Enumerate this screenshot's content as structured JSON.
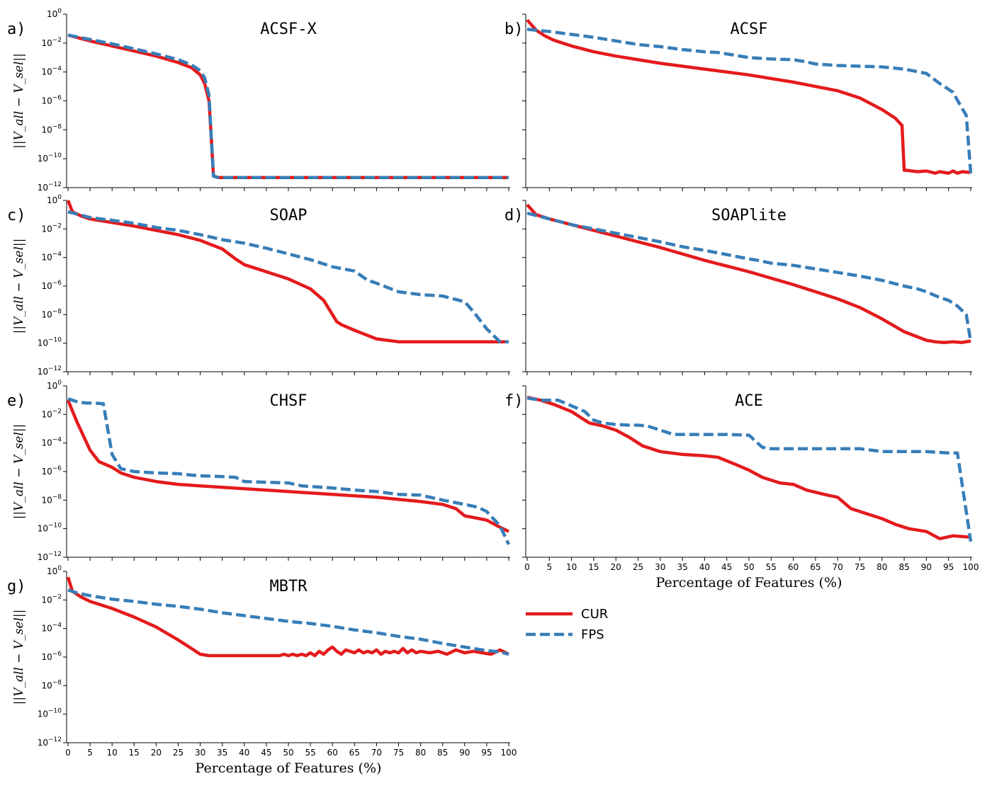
{
  "chart_data": [
    {
      "type": "line",
      "panel": "a)",
      "title": "ACSF-X",
      "xlabel": "",
      "ylabel": "||V_all − V_sel||",
      "xlim": [
        0,
        100
      ],
      "ylim_log10": [
        -12,
        0
      ],
      "xticks": [],
      "ytick_labels": [
        "10⁰",
        "10⁻²",
        "10⁻⁴",
        "10⁻⁶",
        "10⁻⁸",
        "10⁻¹⁰",
        "10⁻¹²"
      ],
      "series": [
        {
          "name": "CUR",
          "x": [
            0,
            5,
            10,
            15,
            20,
            25,
            28,
            30,
            31,
            32,
            32.5,
            33,
            34,
            40,
            50,
            60,
            70,
            80,
            90,
            100
          ],
          "y": [
            -1.45,
            -1.85,
            -2.2,
            -2.55,
            -2.9,
            -3.35,
            -3.7,
            -4.2,
            -4.8,
            -6.0,
            -8.5,
            -11.2,
            -11.3,
            -11.3,
            -11.3,
            -11.3,
            -11.3,
            -11.3,
            -11.3,
            -11.3
          ]
        },
        {
          "name": "FPS",
          "x": [
            0,
            5,
            10,
            15,
            20,
            25,
            28,
            30,
            31,
            32,
            32.5,
            33,
            34,
            40,
            50,
            60,
            70,
            80,
            90,
            100
          ],
          "y": [
            -1.45,
            -1.75,
            -2.05,
            -2.4,
            -2.75,
            -3.15,
            -3.5,
            -3.9,
            -4.4,
            -5.6,
            -8.5,
            -11.2,
            -11.3,
            -11.3,
            -11.3,
            -11.3,
            -11.3,
            -11.3,
            -11.3,
            -11.3
          ]
        }
      ]
    },
    {
      "type": "line",
      "panel": "b)",
      "title": "ACSF",
      "xlabel": "",
      "ylabel": "",
      "xlim": [
        0,
        100
      ],
      "ylim_log10": [
        -12,
        0
      ],
      "xticks": [],
      "ytick_labels": [],
      "series": [
        {
          "name": "CUR",
          "x": [
            0,
            2,
            4,
            6,
            10,
            15,
            20,
            30,
            40,
            50,
            60,
            70,
            75,
            80,
            83,
            84.5,
            85,
            85.5,
            88,
            90,
            92,
            93,
            95,
            96,
            97,
            98,
            100
          ],
          "y": [
            -0.4,
            -1.1,
            -1.5,
            -1.8,
            -2.2,
            -2.6,
            -2.9,
            -3.4,
            -3.8,
            -4.2,
            -4.7,
            -5.3,
            -5.8,
            -6.6,
            -7.2,
            -7.7,
            -10.8,
            -10.8,
            -10.9,
            -10.85,
            -11.0,
            -10.9,
            -11.0,
            -10.85,
            -11.0,
            -10.9,
            -10.95
          ]
        },
        {
          "name": "FPS",
          "x": [
            0,
            5,
            10,
            15,
            20,
            25,
            30,
            35,
            40,
            43,
            47,
            50,
            55,
            60,
            63,
            65,
            70,
            75,
            80,
            85,
            90,
            93,
            96,
            98,
            99,
            100
          ],
          "y": [
            -1.05,
            -1.2,
            -1.4,
            -1.6,
            -1.85,
            -2.1,
            -2.25,
            -2.45,
            -2.6,
            -2.65,
            -2.85,
            -3.0,
            -3.1,
            -3.15,
            -3.3,
            -3.45,
            -3.55,
            -3.6,
            -3.65,
            -3.8,
            -4.1,
            -4.8,
            -5.4,
            -6.5,
            -7.0,
            -11.0
          ]
        }
      ]
    },
    {
      "type": "line",
      "panel": "c)",
      "title": "SOAP",
      "xlabel": "",
      "ylabel": "||V_all − V_sel||",
      "xlim": [
        0,
        100
      ],
      "ylim_log10": [
        -12,
        0
      ],
      "xticks": [],
      "ytick_labels": [
        "10⁰",
        "10⁻²",
        "10⁻⁴",
        "10⁻⁶",
        "10⁻⁸",
        "10⁻¹⁰",
        "10⁻¹²"
      ],
      "series": [
        {
          "name": "CUR",
          "x": [
            0,
            1,
            3,
            5,
            10,
            15,
            20,
            25,
            30,
            35,
            38,
            40,
            43,
            45,
            50,
            55,
            58,
            60,
            61,
            62,
            65,
            70,
            75,
            80,
            85,
            90,
            95,
            100
          ],
          "y": [
            0.0,
            -0.8,
            -1.1,
            -1.3,
            -1.55,
            -1.8,
            -2.1,
            -2.4,
            -2.8,
            -3.4,
            -4.1,
            -4.5,
            -4.8,
            -5.0,
            -5.5,
            -6.2,
            -7.0,
            -8.0,
            -8.5,
            -8.7,
            -9.1,
            -9.7,
            -9.9,
            -9.9,
            -9.9,
            -9.9,
            -9.9,
            -9.9
          ]
        },
        {
          "name": "FPS",
          "x": [
            0,
            5,
            10,
            15,
            20,
            25,
            30,
            35,
            40,
            45,
            50,
            55,
            60,
            65,
            68,
            70,
            75,
            80,
            85,
            90,
            92,
            95,
            98,
            100
          ],
          "y": [
            -0.8,
            -1.2,
            -1.4,
            -1.6,
            -1.9,
            -2.1,
            -2.4,
            -2.75,
            -3.0,
            -3.35,
            -3.75,
            -4.15,
            -4.65,
            -4.95,
            -5.6,
            -5.8,
            -6.4,
            -6.6,
            -6.7,
            -7.1,
            -7.8,
            -9.0,
            -9.9,
            -9.9
          ]
        }
      ]
    },
    {
      "type": "line",
      "panel": "d)",
      "title": "SOAPlite",
      "xlabel": "",
      "ylabel": "",
      "xlim": [
        0,
        100
      ],
      "ylim_log10": [
        -12,
        0
      ],
      "xticks": [],
      "ytick_labels": [],
      "series": [
        {
          "name": "CUR",
          "x": [
            0,
            2,
            5,
            10,
            20,
            30,
            40,
            50,
            60,
            70,
            75,
            80,
            85,
            90,
            92,
            94,
            96,
            98,
            100
          ],
          "y": [
            -0.3,
            -1.0,
            -1.3,
            -1.7,
            -2.5,
            -3.3,
            -4.2,
            -5.0,
            -5.9,
            -6.9,
            -7.5,
            -8.3,
            -9.2,
            -9.8,
            -9.9,
            -9.95,
            -9.9,
            -9.95,
            -9.85
          ]
        },
        {
          "name": "FPS",
          "x": [
            0,
            5,
            10,
            15,
            20,
            25,
            30,
            35,
            40,
            45,
            50,
            52,
            55,
            60,
            65,
            70,
            75,
            80,
            85,
            88,
            90,
            93,
            95,
            97,
            99,
            100
          ],
          "y": [
            -0.9,
            -1.3,
            -1.7,
            -2.0,
            -2.3,
            -2.6,
            -2.9,
            -3.25,
            -3.5,
            -3.8,
            -4.1,
            -4.2,
            -4.4,
            -4.55,
            -4.8,
            -5.05,
            -5.3,
            -5.6,
            -6.0,
            -6.2,
            -6.4,
            -6.8,
            -7.0,
            -7.4,
            -8.0,
            -9.9
          ]
        }
      ]
    },
    {
      "type": "line",
      "panel": "e)",
      "title": "CHSF",
      "xlabel": "",
      "ylabel": "||V_all − V_sel||",
      "xlim": [
        0,
        100
      ],
      "ylim_log10": [
        -12,
        0
      ],
      "xticks": [],
      "ytick_labels": [
        "10⁰",
        "10⁻²",
        "10⁻⁴",
        "10⁻⁶",
        "10⁻⁸",
        "10⁻¹⁰",
        "10⁻¹²"
      ],
      "series": [
        {
          "name": "CUR",
          "x": [
            0,
            2,
            5,
            7,
            10,
            12,
            15,
            20,
            25,
            30,
            40,
            50,
            60,
            70,
            80,
            85,
            88,
            90,
            95,
            98,
            100
          ],
          "y": [
            -1.0,
            -2.5,
            -4.5,
            -5.3,
            -5.7,
            -6.1,
            -6.4,
            -6.7,
            -6.9,
            -7.0,
            -7.2,
            -7.4,
            -7.6,
            -7.8,
            -8.1,
            -8.3,
            -8.6,
            -9.1,
            -9.4,
            -9.9,
            -10.2
          ]
        },
        {
          "name": "FPS",
          "x": [
            0,
            2,
            4,
            6,
            8,
            10,
            12,
            15,
            20,
            25,
            28,
            30,
            35,
            38,
            40,
            45,
            50,
            53,
            60,
            65,
            70,
            75,
            80,
            85,
            90,
            93,
            95,
            98,
            100
          ],
          "y": [
            -0.9,
            -1.1,
            -1.2,
            -1.2,
            -1.25,
            -4.8,
            -5.8,
            -6.0,
            -6.1,
            -6.15,
            -6.25,
            -6.3,
            -6.35,
            -6.4,
            -6.7,
            -6.75,
            -6.8,
            -7.0,
            -7.15,
            -7.3,
            -7.4,
            -7.6,
            -7.65,
            -8.0,
            -8.3,
            -8.5,
            -8.8,
            -9.8,
            -11.1
          ]
        }
      ]
    },
    {
      "type": "line",
      "panel": "f)",
      "title": "ACE",
      "xlabel": "Percentage of Features (%)",
      "ylabel": "",
      "xlim": [
        0,
        100
      ],
      "ylim_log10": [
        -12,
        0
      ],
      "xticks": [
        0,
        5,
        10,
        15,
        20,
        25,
        30,
        35,
        40,
        45,
        50,
        55,
        60,
        65,
        70,
        75,
        80,
        85,
        90,
        95,
        100
      ],
      "ytick_labels": [],
      "series": [
        {
          "name": "CUR",
          "x": [
            0,
            3,
            6,
            10,
            14,
            17,
            20,
            23,
            26,
            30,
            35,
            40,
            43,
            47,
            50,
            53,
            57,
            60,
            63,
            67,
            70,
            73,
            77,
            80,
            83,
            86,
            90,
            93,
            96,
            100
          ],
          "y": [
            -0.8,
            -1.0,
            -1.3,
            -1.8,
            -2.6,
            -2.8,
            -3.1,
            -3.6,
            -4.2,
            -4.6,
            -4.8,
            -4.9,
            -5.0,
            -5.5,
            -5.9,
            -6.4,
            -6.8,
            -6.9,
            -7.3,
            -7.6,
            -7.8,
            -8.6,
            -9.0,
            -9.3,
            -9.7,
            -10.0,
            -10.2,
            -10.7,
            -10.5,
            -10.6
          ]
        },
        {
          "name": "FPS",
          "x": [
            0,
            3,
            7,
            10,
            13,
            15,
            17,
            20,
            23,
            25,
            27,
            30,
            33,
            35,
            40,
            45,
            50,
            53,
            55,
            60,
            65,
            70,
            75,
            80,
            85,
            90,
            95,
            97,
            100
          ],
          "y": [
            -0.85,
            -1.0,
            -1.0,
            -1.4,
            -1.8,
            -2.4,
            -2.6,
            -2.7,
            -2.75,
            -2.75,
            -2.8,
            -3.1,
            -3.4,
            -3.4,
            -3.4,
            -3.4,
            -3.45,
            -4.3,
            -4.4,
            -4.4,
            -4.4,
            -4.4,
            -4.4,
            -4.6,
            -4.6,
            -4.6,
            -4.7,
            -4.7,
            -10.9
          ]
        }
      ]
    },
    {
      "type": "line",
      "panel": "g)",
      "title": "MBTR",
      "xlabel": "Percentage of Features (%)",
      "ylabel": "||V_all − V_sel||",
      "xlim": [
        0,
        100
      ],
      "ylim_log10": [
        -12,
        0
      ],
      "xticks": [
        0,
        5,
        10,
        15,
        20,
        25,
        30,
        35,
        40,
        45,
        50,
        55,
        60,
        65,
        70,
        75,
        80,
        85,
        90,
        95,
        100
      ],
      "ytick_labels": [
        "10⁰",
        "10⁻²",
        "10⁻⁴",
        "10⁻⁶",
        "10⁻⁸",
        "10⁻¹⁰",
        "10⁻¹²"
      ],
      "series": [
        {
          "name": "CUR",
          "x": [
            0,
            1,
            3,
            5,
            10,
            15,
            20,
            25,
            28,
            30,
            32,
            35,
            40,
            45,
            48,
            49,
            50,
            51,
            52,
            53,
            54,
            55,
            56,
            57,
            58,
            59,
            60,
            61,
            62,
            63,
            64,
            65,
            66,
            67,
            68,
            69,
            70,
            71,
            72,
            73,
            74,
            75,
            76,
            77,
            78,
            79,
            80,
            82,
            84,
            86,
            88,
            90,
            92,
            94,
            96,
            98,
            100
          ],
          "y": [
            -0.4,
            -1.4,
            -1.8,
            -2.1,
            -2.6,
            -3.2,
            -3.9,
            -4.8,
            -5.4,
            -5.8,
            -5.9,
            -5.9,
            -5.9,
            -5.9,
            -5.9,
            -5.8,
            -5.9,
            -5.8,
            -5.9,
            -5.8,
            -5.9,
            -5.7,
            -5.9,
            -5.6,
            -5.8,
            -5.5,
            -5.3,
            -5.6,
            -5.8,
            -5.5,
            -5.6,
            -5.7,
            -5.5,
            -5.7,
            -5.6,
            -5.7,
            -5.5,
            -5.8,
            -5.6,
            -5.7,
            -5.6,
            -5.7,
            -5.4,
            -5.7,
            -5.5,
            -5.7,
            -5.6,
            -5.7,
            -5.6,
            -5.8,
            -5.5,
            -5.7,
            -5.6,
            -5.7,
            -5.8,
            -5.5,
            -5.8
          ]
        },
        {
          "name": "FPS",
          "x": [
            0,
            2,
            5,
            10,
            15,
            20,
            25,
            30,
            35,
            40,
            45,
            50,
            55,
            60,
            65,
            70,
            75,
            80,
            85,
            90,
            95,
            98,
            100
          ],
          "y": [
            -1.3,
            -1.5,
            -1.7,
            -1.95,
            -2.1,
            -2.3,
            -2.45,
            -2.65,
            -2.9,
            -3.1,
            -3.3,
            -3.5,
            -3.65,
            -3.85,
            -4.1,
            -4.3,
            -4.55,
            -4.75,
            -5.05,
            -5.3,
            -5.55,
            -5.65,
            -5.8
          ]
        }
      ]
    }
  ],
  "legend": [
    {
      "label": "CUR",
      "color": "#e41a1c",
      "style": "solid"
    },
    {
      "label": "FPS",
      "color": "#377eb8",
      "style": "dashed"
    }
  ]
}
